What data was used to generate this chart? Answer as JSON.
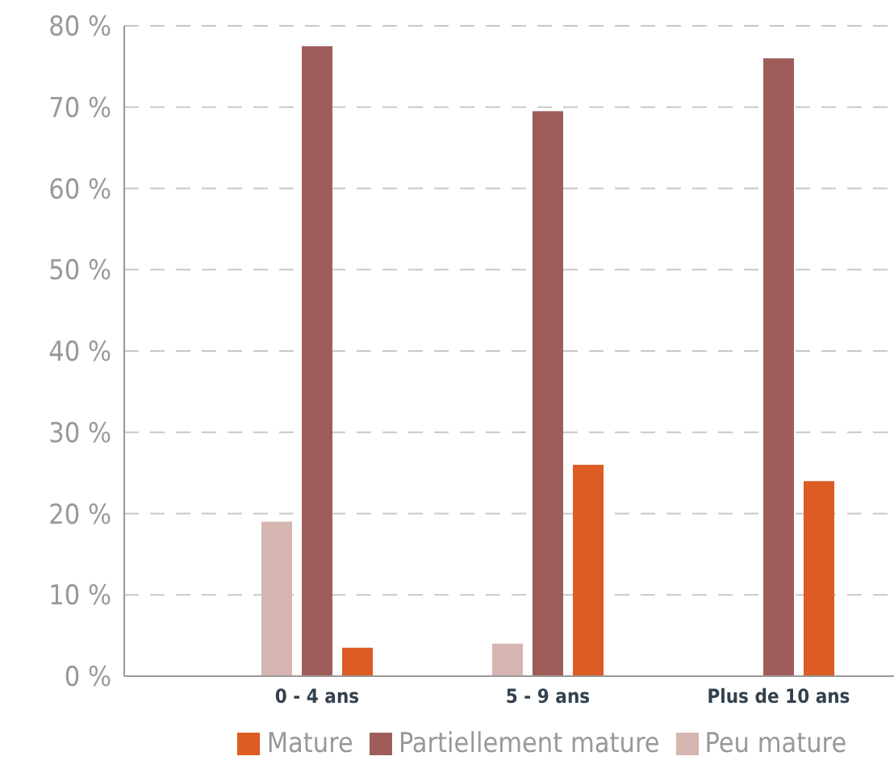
{
  "chart_data": {
    "type": "bar",
    "categories": [
      "0 - 4 ans",
      "5 - 9 ans",
      "Plus de 10 ans"
    ],
    "series": [
      {
        "name": "Peu mature",
        "color": "#d5b5b0",
        "values": [
          19,
          4,
          0
        ]
      },
      {
        "name": "Partiellement mature",
        "color": "#9e5d5a",
        "values": [
          77.5,
          69.5,
          76
        ]
      },
      {
        "name": "Mature",
        "color": "#dc5c23",
        "values": [
          3.5,
          26,
          24
        ]
      }
    ],
    "ylim": [
      0,
      80
    ],
    "yticks": [
      {
        "value": 0,
        "label": "0 %"
      },
      {
        "value": 10,
        "label": "10 %"
      },
      {
        "value": 20,
        "label": "20 %"
      },
      {
        "value": 30,
        "label": "30 %"
      },
      {
        "value": 40,
        "label": "40 %"
      },
      {
        "value": 50,
        "label": "50 %"
      },
      {
        "value": 60,
        "label": "60 %"
      },
      {
        "value": 70,
        "label": "70 %"
      },
      {
        "value": 80,
        "label": "80 %"
      }
    ],
    "grid": "y",
    "legend": "bottom"
  }
}
